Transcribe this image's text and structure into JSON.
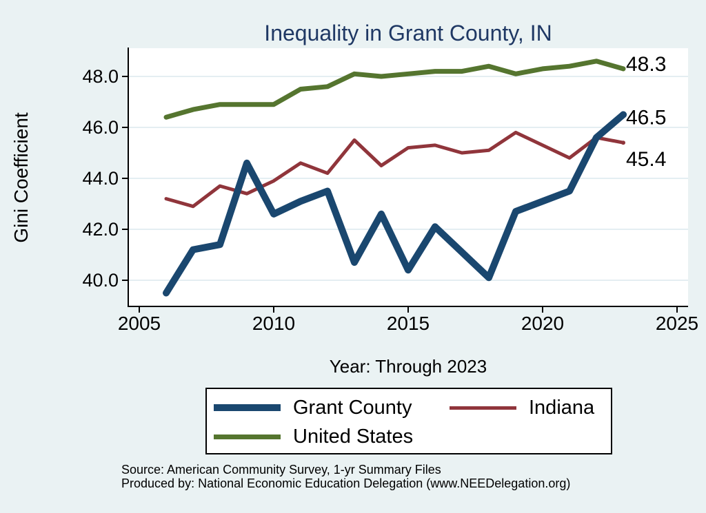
{
  "chart_data": {
    "type": "line",
    "title": "Inequality in Grant County, IN",
    "xlabel": "Year: Through 2023",
    "ylabel": "Gini Coefficient",
    "x": [
      2006,
      2007,
      2008,
      2009,
      2010,
      2011,
      2012,
      2013,
      2014,
      2015,
      2016,
      2017,
      2018,
      2019,
      2020,
      2021,
      2022,
      2023
    ],
    "series": [
      {
        "name": "Grant County",
        "color": "#1a476f",
        "line_width": 10,
        "end_label": "46.5",
        "values": [
          39.5,
          41.2,
          41.4,
          44.6,
          42.6,
          43.1,
          43.5,
          40.7,
          42.6,
          40.4,
          42.1,
          41.1,
          40.1,
          42.7,
          43.1,
          43.5,
          45.6,
          46.5
        ]
      },
      {
        "name": "Indiana",
        "color": "#90353b",
        "line_width": 5,
        "end_label": "45.4",
        "values": [
          43.2,
          42.9,
          43.7,
          43.4,
          43.9,
          44.6,
          44.2,
          45.5,
          44.5,
          45.2,
          45.3,
          45.0,
          45.1,
          45.8,
          45.3,
          44.8,
          45.6,
          45.4
        ]
      },
      {
        "name": "United States",
        "color": "#55752f",
        "line_width": 7,
        "end_label": "48.3",
        "values": [
          46.4,
          46.7,
          46.9,
          46.9,
          46.9,
          47.5,
          47.6,
          48.1,
          48.0,
          48.1,
          48.2,
          48.2,
          48.4,
          48.1,
          48.3,
          48.4,
          48.6,
          48.3
        ]
      }
    ],
    "x_ticks": [
      2005,
      2010,
      2015,
      2020,
      2025
    ],
    "y_ticks": [
      40.0,
      42.0,
      44.0,
      46.0,
      48.0
    ],
    "xlim": [
      2005,
      2025
    ],
    "ylim": [
      39.0,
      49.1
    ],
    "grid": true,
    "legend_position": "bottom"
  },
  "notes": {
    "source_line": "Source: American Community Survey, 1-yr Summary Files",
    "produced_by_line": "Produced by: National Economic Education Delegation (www.NEEDelegation.org)"
  },
  "colors": {
    "background": "#eaf2f3",
    "plot_background": "#ffffff",
    "grid_line": "#e4eef2",
    "axis": "#000000",
    "title_text": "#1f3864",
    "tick_text": "#000000"
  }
}
